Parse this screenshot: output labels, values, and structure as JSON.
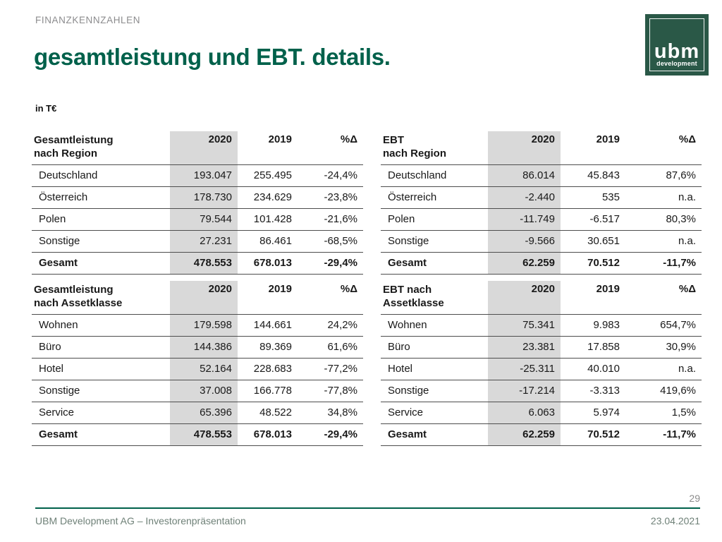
{
  "slide": {
    "eyebrow": "FINANZKENNZAHLEN",
    "title": "gesamtleistung und EBT. details.",
    "unit_label": "in T€",
    "page_number": "29",
    "footer_left": "UBM Development AG – Investorenpräsentation",
    "footer_right": "23.04.2021"
  },
  "logo": {
    "text": "ubm",
    "subtext": "development"
  },
  "colors": {
    "brand_green": "#00614B",
    "logo_green": "#2A5847",
    "column_highlight": "#D9D9D9",
    "eyebrow_gray": "#8C8C8E",
    "footer_text": "#6F8178",
    "table_line": "#4D4D4D"
  },
  "tables": [
    {
      "id": "gesamtleistung-nach-region",
      "title_lines": [
        "Gesamtleistung",
        "nach Region"
      ],
      "columns": [
        "2020",
        "2019",
        "%Δ"
      ],
      "rows": [
        [
          "Deutschland",
          "193.047",
          "255.495",
          "-24,4%"
        ],
        [
          "Österreich",
          "178.730",
          "234.629",
          "-23,8%"
        ],
        [
          "Polen",
          "79.544",
          "101.428",
          "-21,6%"
        ],
        [
          "Sonstige",
          "27.231",
          "86.461",
          "-68,5%"
        ]
      ],
      "total": [
        "Gesamt",
        "478.553",
        "678.013",
        "-29,4%"
      ]
    },
    {
      "id": "ebt-nach-region",
      "title_lines": [
        "EBT",
        "nach Region"
      ],
      "columns": [
        "2020",
        "2019",
        "%Δ"
      ],
      "rows": [
        [
          "Deutschland",
          "86.014",
          "45.843",
          "87,6%"
        ],
        [
          "Österreich",
          "-2.440",
          "535",
          "n.a."
        ],
        [
          "Polen",
          "-11.749",
          "-6.517",
          "80,3%"
        ],
        [
          "Sonstige",
          "-9.566",
          "30.651",
          "n.a."
        ]
      ],
      "total": [
        "Gesamt",
        "62.259",
        "70.512",
        "-11,7%"
      ]
    },
    {
      "id": "gesamtleistung-nach-assetklasse",
      "title_lines": [
        "Gesamtleistung",
        "nach Assetklasse"
      ],
      "columns": [
        "2020",
        "2019",
        "%Δ"
      ],
      "rows": [
        [
          "Wohnen",
          "179.598",
          "144.661",
          "24,2%"
        ],
        [
          "Büro",
          "144.386",
          "89.369",
          "61,6%"
        ],
        [
          "Hotel",
          "52.164",
          "228.683",
          "-77,2%"
        ],
        [
          "Sonstige",
          "37.008",
          "166.778",
          "-77,8%"
        ],
        [
          "Service",
          "65.396",
          "48.522",
          "34,8%"
        ]
      ],
      "total": [
        "Gesamt",
        "478.553",
        "678.013",
        "-29,4%"
      ]
    },
    {
      "id": "ebt-nach-assetklasse",
      "title_lines": [
        "EBT nach",
        "Assetklasse"
      ],
      "columns": [
        "2020",
        "2019",
        "%Δ"
      ],
      "rows": [
        [
          "Wohnen",
          "75.341",
          "9.983",
          "654,7%"
        ],
        [
          "Büro",
          "23.381",
          "17.858",
          "30,9%"
        ],
        [
          "Hotel",
          "-25.311",
          "40.010",
          "n.a."
        ],
        [
          "Sonstige",
          "-17.214",
          "-3.313",
          "419,6%"
        ],
        [
          "Service",
          "6.063",
          "5.974",
          "1,5%"
        ]
      ],
      "total": [
        "Gesamt",
        "62.259",
        "70.512",
        "-11,7%"
      ]
    }
  ]
}
